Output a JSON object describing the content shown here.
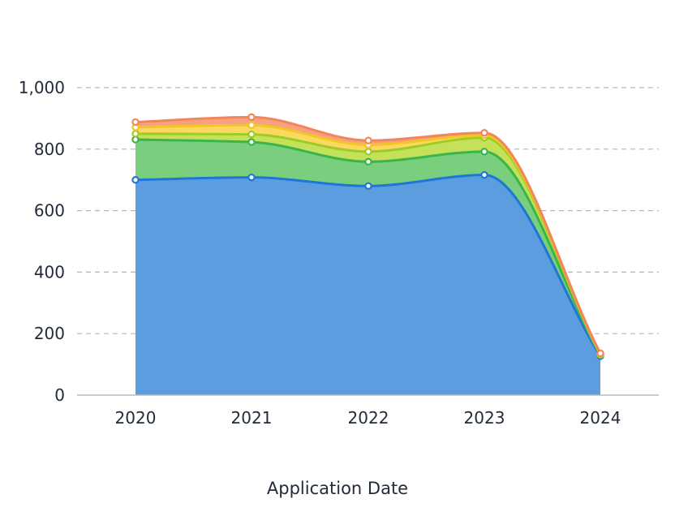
{
  "chart_data": {
    "type": "area",
    "stacked": true,
    "title": "",
    "xlabel": "Application Date",
    "ylabel": "",
    "categories": [
      "2020",
      "2021",
      "2022",
      "2023",
      "2024"
    ],
    "ylim": [
      0,
      1000
    ],
    "yticks": [
      0,
      200,
      400,
      600,
      800,
      1000
    ],
    "ytick_labels": [
      "0",
      "200",
      "400",
      "600",
      "800",
      "1,000"
    ],
    "grid": true,
    "legend": "none",
    "series": [
      {
        "values": [
          700,
          708,
          680,
          716,
          127
        ],
        "color": "#1f77d4",
        "fill": "#5c9de0"
      },
      {
        "values": [
          131,
          115,
          79,
          76,
          3
        ],
        "color": "#3bb54a",
        "fill": "#79cf7d"
      },
      {
        "values": [
          19,
          25,
          33,
          45,
          2
        ],
        "color": "#9ccc25",
        "fill": "#c5e15a"
      },
      {
        "values": [
          21,
          30,
          22,
          8,
          2
        ],
        "color": "#f3c623",
        "fill": "#fbd860"
      },
      {
        "values": [
          17,
          26,
          14,
          8,
          2
        ],
        "color": "#f2855a",
        "fill": "#f7a27e"
      }
    ]
  }
}
